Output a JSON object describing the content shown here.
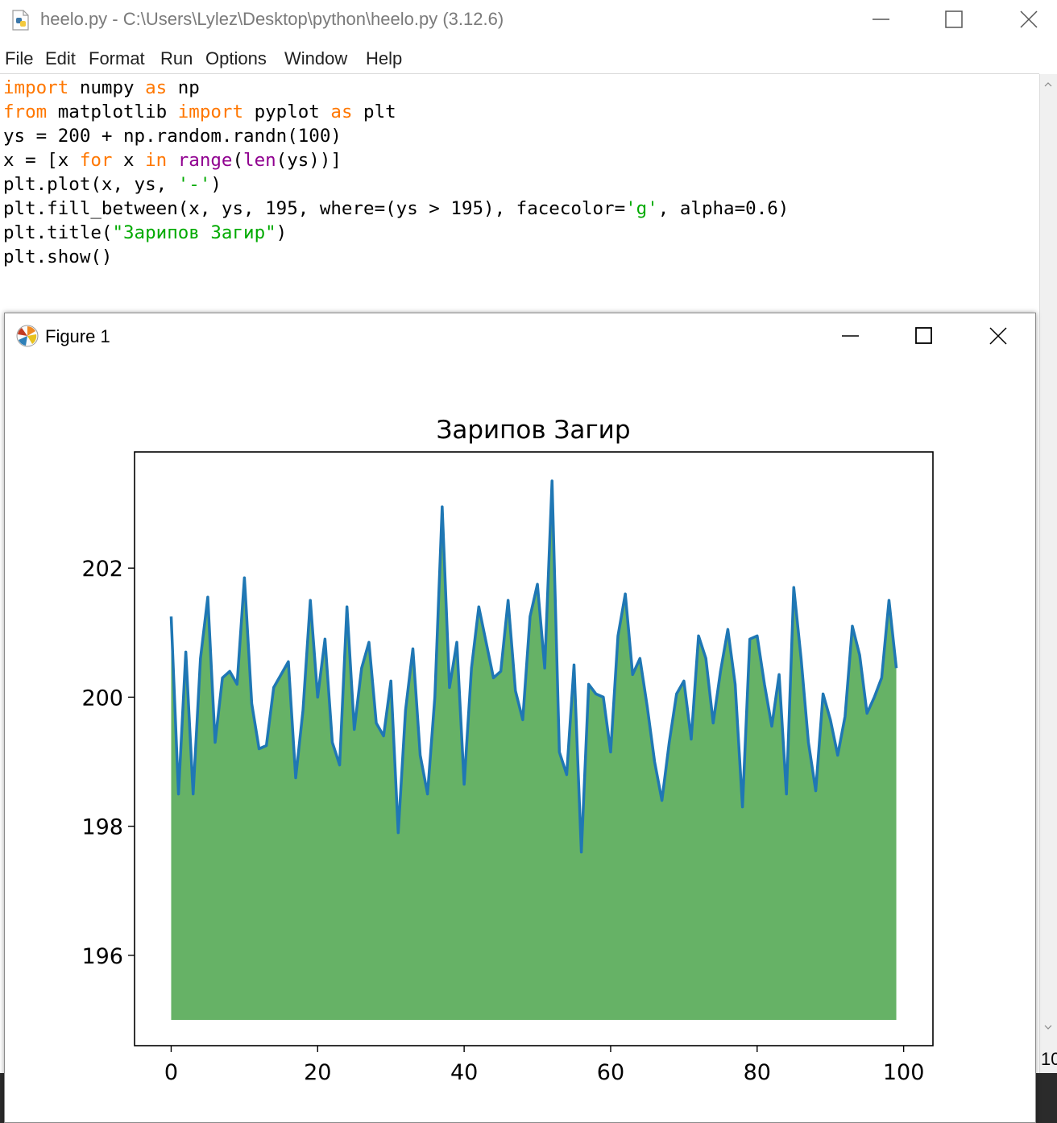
{
  "idle_window": {
    "title": "heelo.py - C:\\Users\\Lylez\\Desktop\\python\\heelo.py (3.12.6)",
    "menu": [
      "File",
      "Edit",
      "Format",
      "Run",
      "Options",
      "Window",
      "Help"
    ],
    "code_lines": [
      "import numpy as np",
      "from matplotlib import pyplot as plt",
      "ys = 200 + np.random.randn(100)",
      "x = [x for x in range(len(ys))]",
      "plt.plot(x, ys, '-')",
      "plt.fill_between(x, ys, 195, where=(ys > 195), facecolor='g', alpha=0.6)",
      "plt.title(\"Зарипов Загир\")",
      "plt.show()"
    ],
    "status_text": "10"
  },
  "figure_window": {
    "title": "Figure 1",
    "icon": "matplotlib-icon"
  },
  "colors": {
    "keyword": "#ff7700",
    "builtin": "#900090",
    "string": "#00aa00",
    "line": "#1f77b4",
    "fill": "#66b266"
  },
  "chart_data": {
    "type": "area",
    "title": "Зарипов Загир",
    "xlabel": "",
    "ylabel": "",
    "xlim": [
      -5,
      104
    ],
    "ylim": [
      194.6,
      203.8
    ],
    "xticks": [
      0,
      20,
      40,
      60,
      80,
      100
    ],
    "yticks": [
      196,
      198,
      200,
      202
    ],
    "fill_baseline": 195,
    "grid": false,
    "x": [
      0,
      1,
      2,
      3,
      4,
      5,
      6,
      7,
      8,
      9,
      10,
      11,
      12,
      13,
      14,
      15,
      16,
      17,
      18,
      19,
      20,
      21,
      22,
      23,
      24,
      25,
      26,
      27,
      28,
      29,
      30,
      31,
      32,
      33,
      34,
      35,
      36,
      37,
      38,
      39,
      40,
      41,
      42,
      43,
      44,
      45,
      46,
      47,
      48,
      49,
      50,
      51,
      52,
      53,
      54,
      55,
      56,
      57,
      58,
      59,
      60,
      61,
      62,
      63,
      64,
      65,
      66,
      67,
      68,
      69,
      70,
      71,
      72,
      73,
      74,
      75,
      76,
      77,
      78,
      79,
      80,
      81,
      82,
      83,
      84,
      85,
      86,
      87,
      88,
      89,
      90,
      91,
      92,
      93,
      94,
      95,
      96,
      97,
      98,
      99
    ],
    "series": [
      {
        "values": [
          201.25,
          198.5,
          200.7,
          198.5,
          200.6,
          201.55,
          199.3,
          200.3,
          200.4,
          200.2,
          201.85,
          199.9,
          199.2,
          199.25,
          200.15,
          200.35,
          200.55,
          198.75,
          199.8,
          201.5,
          200.0,
          200.9,
          199.3,
          198.95,
          201.4,
          199.5,
          200.45,
          200.85,
          199.6,
          199.4,
          200.25,
          197.9,
          199.8,
          200.75,
          199.1,
          198.5,
          200.0,
          202.95,
          200.15,
          200.85,
          198.65,
          200.45,
          201.4,
          200.85,
          200.3,
          200.4,
          201.5,
          200.1,
          199.65,
          201.25,
          201.75,
          200.45,
          203.35,
          199.15,
          198.8,
          200.5,
          197.6,
          200.2,
          200.05,
          200.0,
          199.15,
          200.95,
          201.6,
          200.35,
          200.6,
          199.85,
          199.0,
          198.4,
          199.3,
          200.05,
          200.25,
          199.35,
          200.95,
          200.6,
          199.6,
          200.4,
          201.05,
          200.2,
          198.3,
          200.9,
          200.95,
          200.2,
          199.55,
          200.35,
          198.5,
          201.7,
          200.6,
          199.3,
          198.55,
          200.05,
          199.65,
          199.1,
          199.7,
          201.1,
          200.65,
          199.75,
          200.0,
          200.3,
          201.5,
          200.45
        ]
      }
    ]
  }
}
